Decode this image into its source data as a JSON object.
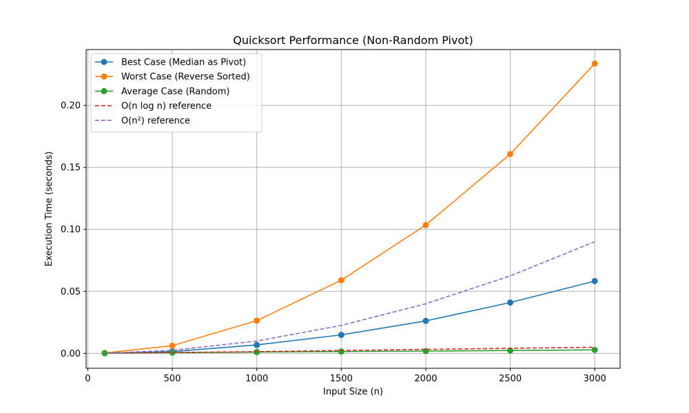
{
  "chart_data": {
    "type": "line",
    "title": "Quicksort Performance (Non-Random Pivot)",
    "xlabel": "Input Size (n)",
    "ylabel": "Execution Time (seconds)",
    "xlim": [
      -10,
      3150
    ],
    "ylim": [
      -0.012,
      0.245
    ],
    "x_ticks": [
      0,
      500,
      1000,
      1500,
      2000,
      2500,
      3000
    ],
    "x_tick_labels": [
      "0",
      "500",
      "1000",
      "1500",
      "2000",
      "2500",
      "3000"
    ],
    "y_ticks": [
      0.0,
      0.05,
      0.1,
      0.15,
      0.2
    ],
    "y_tick_labels": [
      "0.00",
      "0.05",
      "0.10",
      "0.15",
      "0.20"
    ],
    "grid": true,
    "legend_position": "top-left",
    "x": [
      100,
      500,
      1000,
      1500,
      2000,
      2500,
      3000
    ],
    "series": [
      {
        "name": "Best Case (Median as Pivot)",
        "color": "#1f77b4",
        "style": "solid",
        "marker": true,
        "values": [
          0.0002,
          0.0015,
          0.0068,
          0.0149,
          0.0262,
          0.041,
          0.0583
        ]
      },
      {
        "name": "Worst Case (Reverse Sorted)",
        "color": "#ff7f0e",
        "style": "solid",
        "marker": true,
        "values": [
          0.0003,
          0.0062,
          0.0264,
          0.059,
          0.1035,
          0.1607,
          0.2337
        ]
      },
      {
        "name": "Average Case (Random)",
        "color": "#2ca02c",
        "style": "solid",
        "marker": true,
        "values": [
          0.0001,
          0.0006,
          0.0011,
          0.0015,
          0.0019,
          0.0023,
          0.0028
        ]
      },
      {
        "name": "O(n log n) reference",
        "color": "#d62728",
        "style": "dashed",
        "marker": false,
        "values": [
          0.0001,
          0.0007,
          0.0014,
          0.0023,
          0.0032,
          0.0041,
          0.005
        ]
      },
      {
        "name": "O(n²) reference",
        "color": "#9467bd",
        "style": "dashed",
        "marker": false,
        "values": [
          0.0001,
          0.0025,
          0.01,
          0.0225,
          0.04,
          0.0625,
          0.09
        ]
      }
    ]
  }
}
